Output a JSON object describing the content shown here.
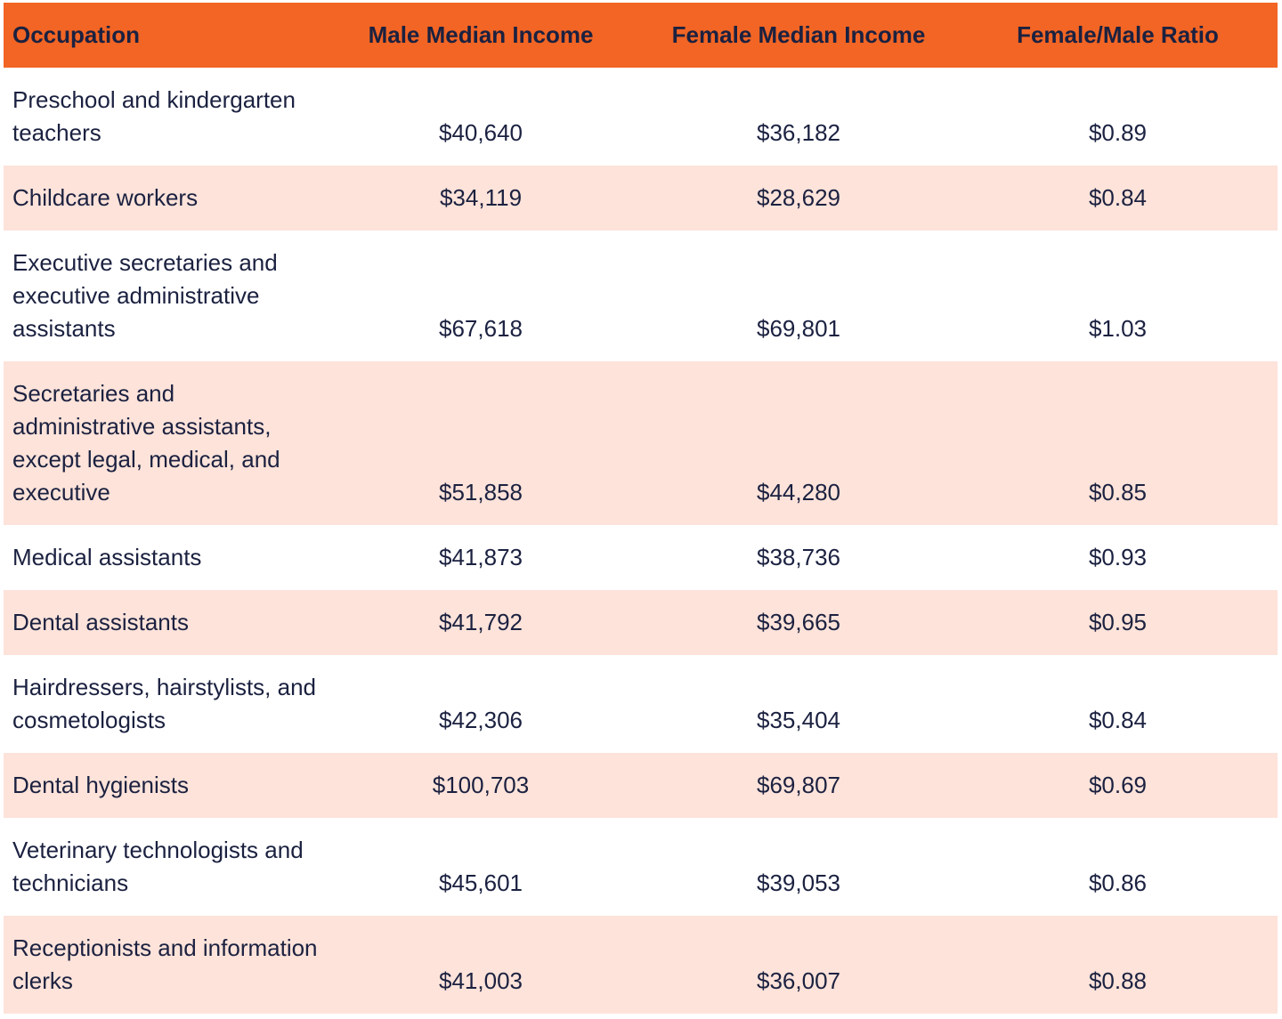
{
  "table": {
    "headers": [
      "Occupation",
      "Male Median Income",
      "Female Median Income",
      "Female/Male Ratio"
    ],
    "header_color": "#f26524",
    "stripe_color": "#fde3da",
    "rows": [
      [
        "Preschool and kindergarten teachers",
        "$40,640",
        "$36,182",
        "$0.89"
      ],
      [
        "Childcare workers",
        "$34,119",
        "$28,629",
        "$0.84"
      ],
      [
        "Executive secretaries and executive administrative assistants",
        "$67,618",
        "$69,801",
        "$1.03"
      ],
      [
        "Secretaries and administrative assistants, except legal, medical, and executive",
        "$51,858",
        "$44,280",
        "$0.85"
      ],
      [
        "Medical assistants",
        "$41,873",
        "$38,736",
        "$0.93"
      ],
      [
        "Dental assistants",
        "$41,792",
        "$39,665",
        "$0.95"
      ],
      [
        "Hairdressers, hairstylists, and cosmetologists",
        "$42,306",
        "$35,404",
        "$0.84"
      ],
      [
        "Dental hygienists",
        "$100,703",
        "$69,807",
        "$0.69"
      ],
      [
        "Veterinary technologists and technicians",
        "$45,601",
        "$39,053",
        "$0.86"
      ],
      [
        "Receptionists and information clerks",
        "$41,003",
        "$36,007",
        "$0.88"
      ]
    ]
  }
}
